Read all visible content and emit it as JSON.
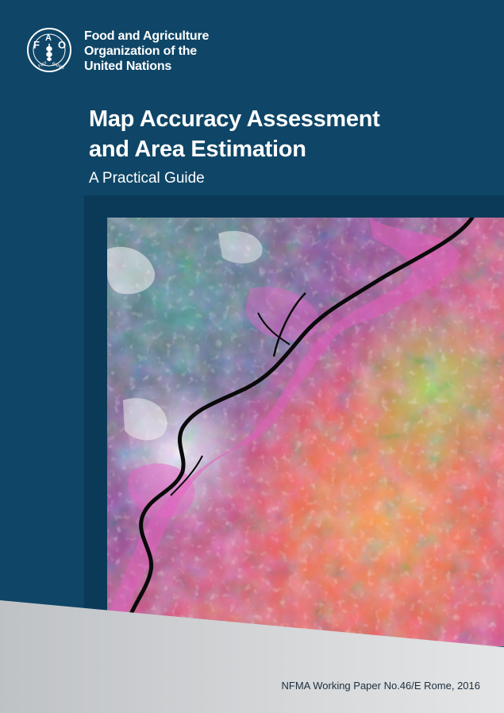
{
  "organization": {
    "logo_text": "FAO",
    "logo_motto": "FIAT PANIS",
    "name_lines": [
      "Food and Agriculture",
      "Organization of the",
      "United Nations"
    ]
  },
  "title": {
    "lines": [
      "Map Accuracy Assessment",
      "and Area Estimation"
    ],
    "subtitle": "A Practical Guide"
  },
  "cover_image": {
    "icon": "satellite-image-icon"
  },
  "footer": {
    "series": "NFMA Working Paper No.46/E Rome, 2016"
  },
  "colors": {
    "cover_blue": "#0f4667",
    "panel_blue": "#0b3a58",
    "footer_grey": "#cfd2d4",
    "text_white": "#ffffff",
    "footer_text": "#1c2f3e"
  }
}
